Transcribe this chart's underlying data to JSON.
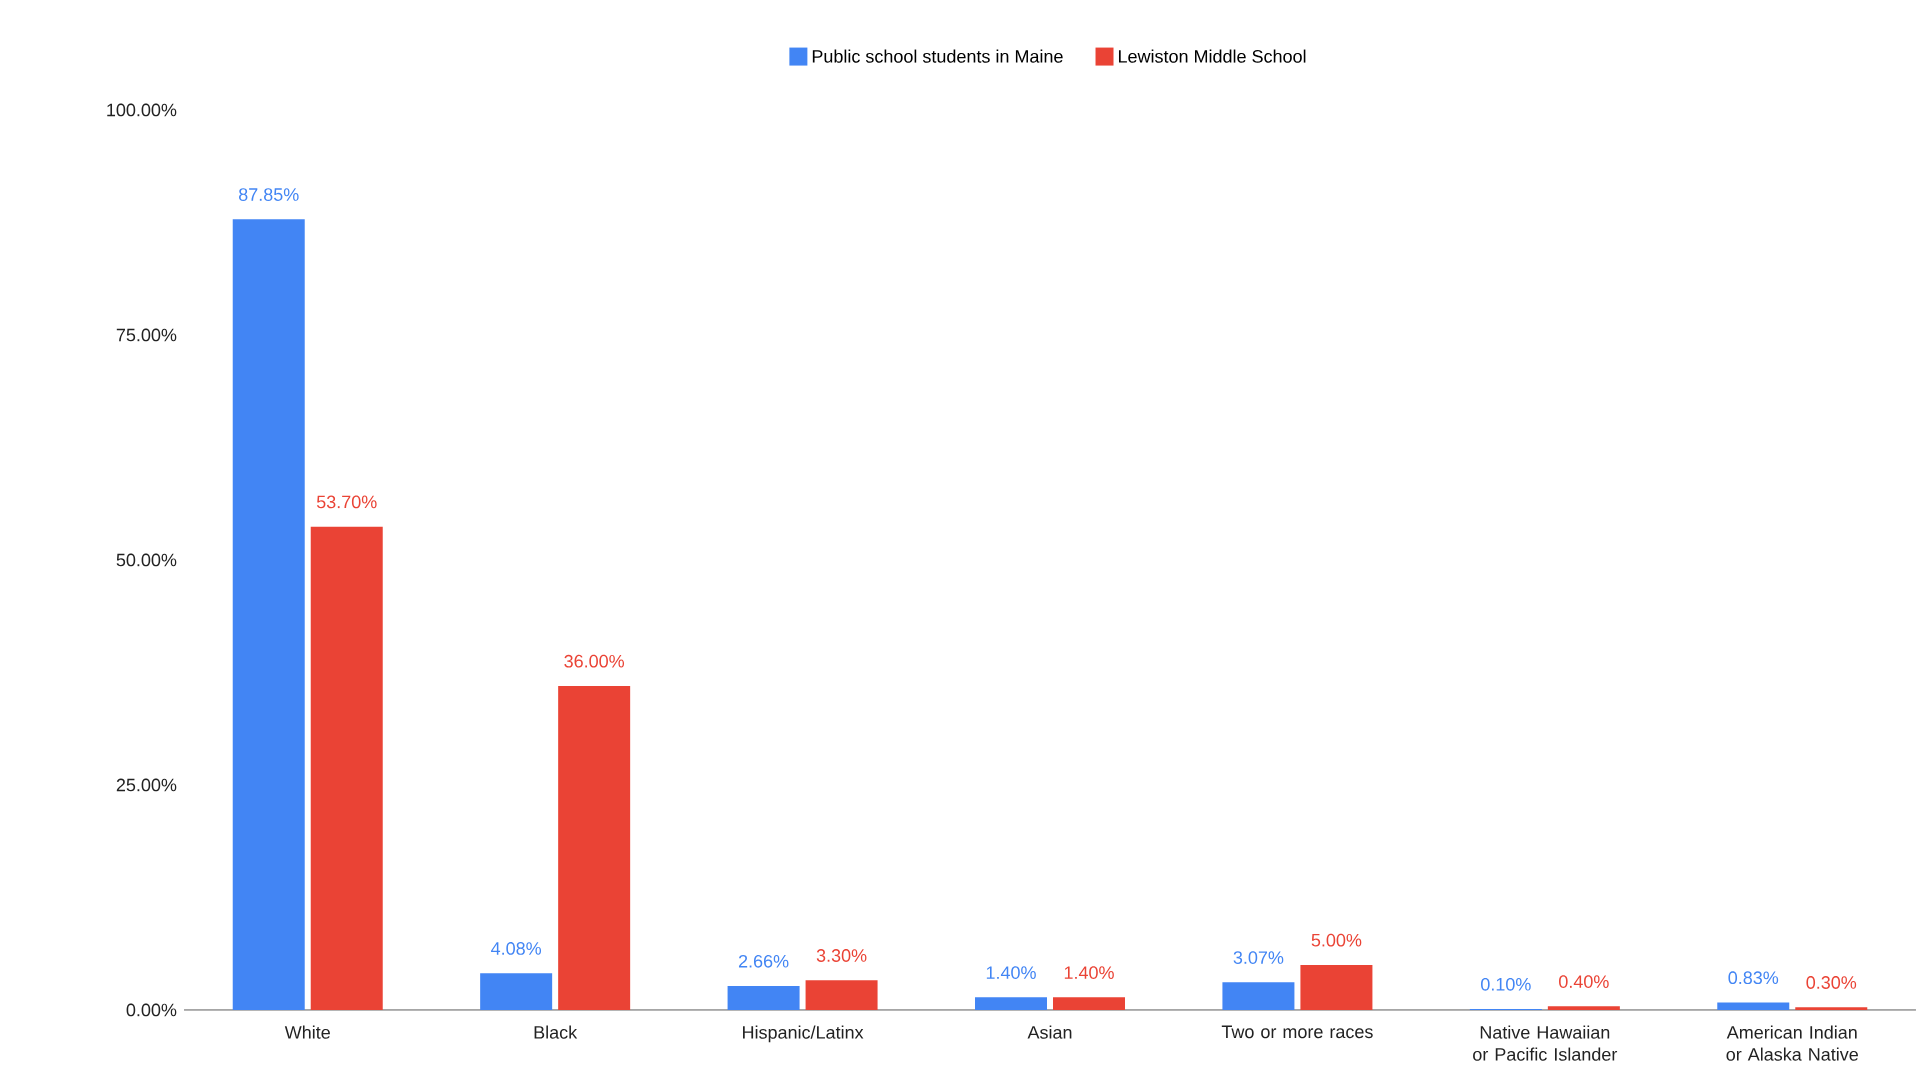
{
  "chart_data": {
    "type": "bar",
    "categories": [
      "White",
      "Black",
      "Hispanic/Latinx",
      "Asian",
      "Two or more races",
      "Native Hawaiian or Pacific Islander",
      "American Indian or Alaska Native"
    ],
    "series": [
      {
        "name": "Public school students in Maine",
        "color": "#4285f4",
        "values": [
          87.85,
          4.08,
          2.66,
          1.4,
          3.07,
          0.1,
          0.83
        ],
        "value_labels": [
          "87.85%",
          "4.08%",
          "2.66%",
          "1.40%",
          "3.07%",
          "0.10%",
          "0.83%"
        ]
      },
      {
        "name": "Lewiston Middle School",
        "color": "#ea4335",
        "values": [
          53.7,
          36.0,
          3.3,
          1.4,
          5.0,
          0.4,
          0.3
        ],
        "value_labels": [
          "53.70%",
          "36.00%",
          "3.30%",
          "1.40%",
          "5.00%",
          "0.40%",
          "0.30%"
        ]
      }
    ],
    "ylim": [
      0,
      100
    ],
    "yticks": [
      {
        "value": 0,
        "label": "0.00%"
      },
      {
        "value": 25,
        "label": "25.00%"
      },
      {
        "value": 50,
        "label": "50.00%"
      },
      {
        "value": 75,
        "label": "75.00%"
      },
      {
        "value": 100,
        "label": "100.00%"
      }
    ],
    "grid": false,
    "legend": "top"
  }
}
